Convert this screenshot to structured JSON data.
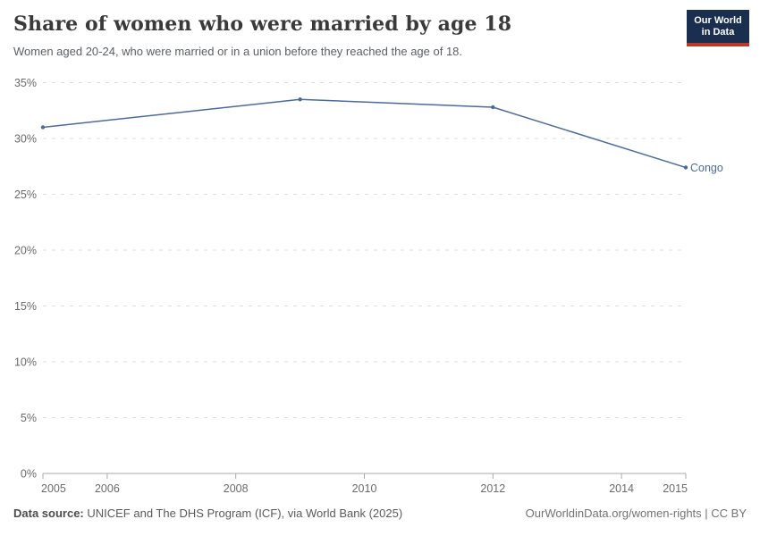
{
  "header": {
    "title": "Share of women who were married by age 18",
    "subtitle": "Women aged 20-24, who were married or in a union before they reached the age of 18.",
    "logo": {
      "line1": "Our World",
      "line2": "in Data"
    }
  },
  "chart_data": {
    "type": "line",
    "title": "Share of women who were married by age 18",
    "series": [
      {
        "name": "Congo",
        "color": "#4c6a9c",
        "x": [
          2005,
          2009,
          2012,
          2015
        ],
        "values": [
          31.0,
          33.5,
          32.8,
          27.4
        ]
      }
    ],
    "xlabel": "",
    "ylabel": "",
    "xlim": [
      2005,
      2015
    ],
    "ylim": [
      0,
      35
    ],
    "x_ticks": [
      2005,
      2006,
      2008,
      2010,
      2012,
      2014,
      2015
    ],
    "y_ticks": [
      0,
      5,
      10,
      15,
      20,
      25,
      30,
      35
    ],
    "y_tick_suffix": "%",
    "grid": "horizontal-dashed",
    "legend_position": "end-of-line-label",
    "colors": {
      "line": "#4c6a9c",
      "gridline": "#dedede",
      "axis_line": "#a9a9a9",
      "tick_label": "#6b6b6b"
    }
  },
  "footer": {
    "data_source_label": "Data source:",
    "data_source_text": " UNICEF and The DHS Program (ICF), via World Bank (2025)",
    "attribution": "OurWorldinData.org/women-rights | CC BY"
  }
}
